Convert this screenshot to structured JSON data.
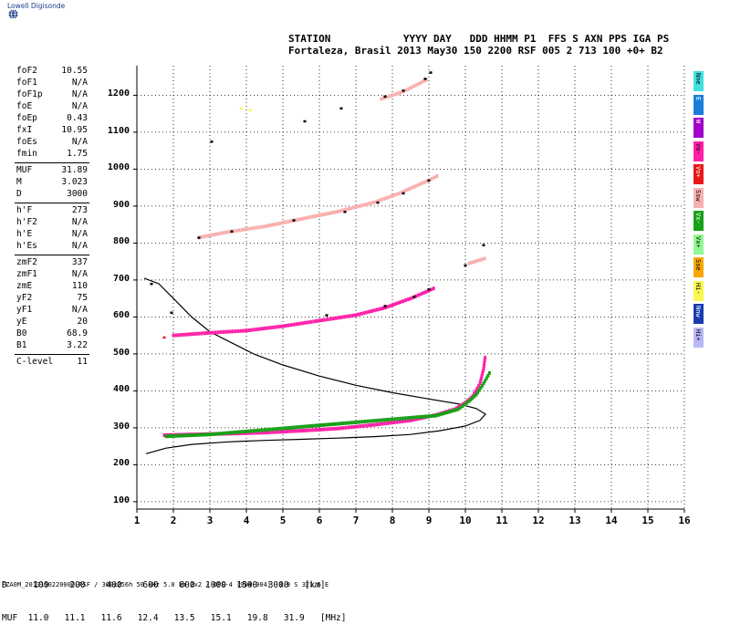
{
  "logo_text": "Lowell Digisonde",
  "header": {
    "line1": "STATION            YYYY DAY   DDD HHMM P1  FFS S AXN PPS IGA PS",
    "line2": "Fortaleza, Brasil 2013 May30 150 2200 RSF 005 2 713 100 +0+ B2"
  },
  "params": [
    {
      "k": "foF2",
      "v": "10.55"
    },
    {
      "k": "foF1",
      "v": "N/A"
    },
    {
      "k": "foF1p",
      "v": "N/A"
    },
    {
      "k": "foE",
      "v": "N/A"
    },
    {
      "k": "foEp",
      "v": "0.43"
    },
    {
      "k": "fxI",
      "v": "10.95"
    },
    {
      "k": "foEs",
      "v": "N/A"
    },
    {
      "k": "fmin",
      "v": "1.75"
    },
    {
      "k": "MUF",
      "v": "31.89"
    },
    {
      "k": "M",
      "v": "3.023"
    },
    {
      "k": "D",
      "v": "3000"
    },
    {
      "k": "h'F",
      "v": "273"
    },
    {
      "k": "h'F2",
      "v": "N/A"
    },
    {
      "k": "h'E",
      "v": "N/A"
    },
    {
      "k": "h'Es",
      "v": "N/A"
    },
    {
      "k": "zmF2",
      "v": "337"
    },
    {
      "k": "zmF1",
      "v": "N/A"
    },
    {
      "k": "zmE",
      "v": "110"
    },
    {
      "k": "yF2",
      "v": "75"
    },
    {
      "k": "yF1",
      "v": "N/A"
    },
    {
      "k": "yE",
      "v": "20"
    },
    {
      "k": "B0",
      "v": "68.9"
    },
    {
      "k": "B1",
      "v": "3.22"
    },
    {
      "k": "C-level",
      "v": "11"
    }
  ],
  "legend": [
    {
      "label": "Nne",
      "color": "#40e0e0"
    },
    {
      "label": "E",
      "color": "#1a7fd8"
    },
    {
      "label": "W",
      "color": "#a000c8"
    },
    {
      "label": "Vo-",
      "color": "#ff20a8"
    },
    {
      "label": "Vo+",
      "color": "#e81818"
    },
    {
      "label": "Ssw",
      "color": "#f8b0b0"
    },
    {
      "label": "Vx-",
      "color": "#18a018"
    },
    {
      "label": "Vx+",
      "color": "#90f890"
    },
    {
      "label": "Sse",
      "color": "#f8a800"
    },
    {
      "label": "Hi-",
      "color": "#f8f850"
    },
    {
      "label": "Nnw",
      "color": "#1a3cb0"
    },
    {
      "label": "Hi+",
      "color": "#b8b8f8"
    }
  ],
  "table": {
    "row1": "D     100    200    400    600    800  1000  1500  3000   [km]",
    "row2": "MUF  11.0   11.1   11.6   12.4   13.5   15.1   19.8   31.9   [MHz]"
  },
  "footer": "FZA0M_2013150220000.RSF / 300x256h 50 kHz 5.0 km 2x2 / DPS-4 (904-904)  3.9 S 321.6 E",
  "chart_data": {
    "type": "scatter",
    "xlim": [
      1,
      16
    ],
    "ylim": [
      80,
      1280
    ],
    "x_ticks": [
      1,
      2,
      3,
      4,
      5,
      6,
      7,
      8,
      9,
      10,
      11,
      12,
      13,
      14,
      15,
      16
    ],
    "y_ticks": [
      100,
      200,
      300,
      400,
      500,
      600,
      700,
      800,
      900,
      1000,
      1100,
      1200
    ],
    "grid": true,
    "series": [
      {
        "type": "curve",
        "color": "#000000",
        "points": [
          [
            1.25,
            230
          ],
          [
            1.8,
            245
          ],
          [
            2.5,
            255
          ],
          [
            3.5,
            262
          ],
          [
            4.5,
            266
          ],
          [
            5.5,
            269
          ],
          [
            6.5,
            272
          ],
          [
            7.5,
            276
          ],
          [
            8.5,
            282
          ],
          [
            9.3,
            292
          ],
          [
            10,
            305
          ],
          [
            10.4,
            320
          ],
          [
            10.55,
            337
          ],
          [
            10.3,
            352
          ],
          [
            9.8,
            365
          ],
          [
            9,
            378
          ],
          [
            8,
            395
          ],
          [
            7,
            415
          ],
          [
            6,
            440
          ],
          [
            5,
            470
          ],
          [
            4.2,
            500
          ],
          [
            3.6,
            530
          ],
          [
            3,
            560
          ],
          [
            2.5,
            600
          ],
          [
            2,
            650
          ],
          [
            1.6,
            690
          ],
          [
            1.2,
            705
          ]
        ]
      },
      {
        "type": "trace",
        "color": "#ff20a8",
        "points": [
          [
            1.75,
            280
          ],
          [
            2.5,
            282
          ],
          [
            3.5,
            284
          ],
          [
            4.5,
            287
          ],
          [
            5.5,
            292
          ],
          [
            6.5,
            298
          ],
          [
            7.5,
            308
          ],
          [
            8.5,
            320
          ],
          [
            9.2,
            335
          ],
          [
            9.7,
            350
          ],
          [
            10.0,
            368
          ],
          [
            10.2,
            385
          ],
          [
            10.4,
            420
          ],
          [
            10.5,
            460
          ],
          [
            10.55,
            497
          ]
        ]
      },
      {
        "type": "trace",
        "color": "#18a018",
        "points": [
          [
            1.8,
            277
          ],
          [
            3,
            282
          ],
          [
            9.2,
            333
          ],
          [
            9.8,
            350
          ],
          [
            10.1,
            372
          ],
          [
            10.3,
            390
          ],
          [
            10.5,
            420
          ],
          [
            10.7,
            455
          ]
        ]
      },
      {
        "type": "trace",
        "color": "#ff20a8",
        "points": [
          [
            2,
            550
          ],
          [
            3,
            557
          ],
          [
            4,
            563
          ],
          [
            5,
            575
          ],
          [
            6,
            590
          ],
          [
            7,
            605
          ],
          [
            7.8,
            625
          ],
          [
            8.5,
            650
          ],
          [
            9.2,
            680
          ]
        ]
      },
      {
        "type": "trace",
        "color": "#f8b0b0",
        "points": [
          [
            2.7,
            815
          ],
          [
            3.5,
            830
          ],
          [
            4.5,
            845
          ],
          [
            5.5,
            865
          ],
          [
            6.5,
            885
          ],
          [
            7.5,
            910
          ],
          [
            8.2,
            935
          ],
          [
            9.0,
            970
          ],
          [
            9.3,
            985
          ]
        ]
      },
      {
        "type": "trace",
        "color": "#f8b0b0",
        "points": [
          [
            7.7,
            1190
          ],
          [
            8.3,
            1210
          ],
          [
            9.0,
            1245
          ]
        ]
      },
      {
        "type": "trace",
        "color": "#f8b0b0",
        "points": [
          [
            10.1,
            745
          ],
          [
            10.6,
            760
          ]
        ]
      },
      {
        "type": "dots",
        "color": "#000000",
        "points": [
          [
            3.05,
            1075
          ],
          [
            5.6,
            1130
          ],
          [
            6.6,
            1165
          ],
          [
            7.8,
            1197
          ],
          [
            8.3,
            1213
          ],
          [
            8.9,
            1245
          ],
          [
            9.05,
            1262
          ],
          [
            10.5,
            795
          ],
          [
            10.0,
            740
          ],
          [
            1.95,
            612
          ],
          [
            1.4,
            690
          ],
          [
            2.7,
            815
          ],
          [
            3.6,
            832
          ],
          [
            5.3,
            862
          ],
          [
            6.7,
            885
          ],
          [
            7.6,
            910
          ],
          [
            8.3,
            935
          ],
          [
            9.0,
            970
          ],
          [
            6.2,
            605
          ],
          [
            7.8,
            630
          ],
          [
            8.6,
            655
          ],
          [
            9.0,
            675
          ]
        ]
      },
      {
        "type": "dots",
        "color": "#f8f850",
        "points": [
          [
            3.85,
            1165
          ],
          [
            4.1,
            1160
          ]
        ]
      },
      {
        "type": "dots",
        "color": "#e81818",
        "points": [
          [
            1.75,
            545
          ]
        ]
      }
    ]
  }
}
